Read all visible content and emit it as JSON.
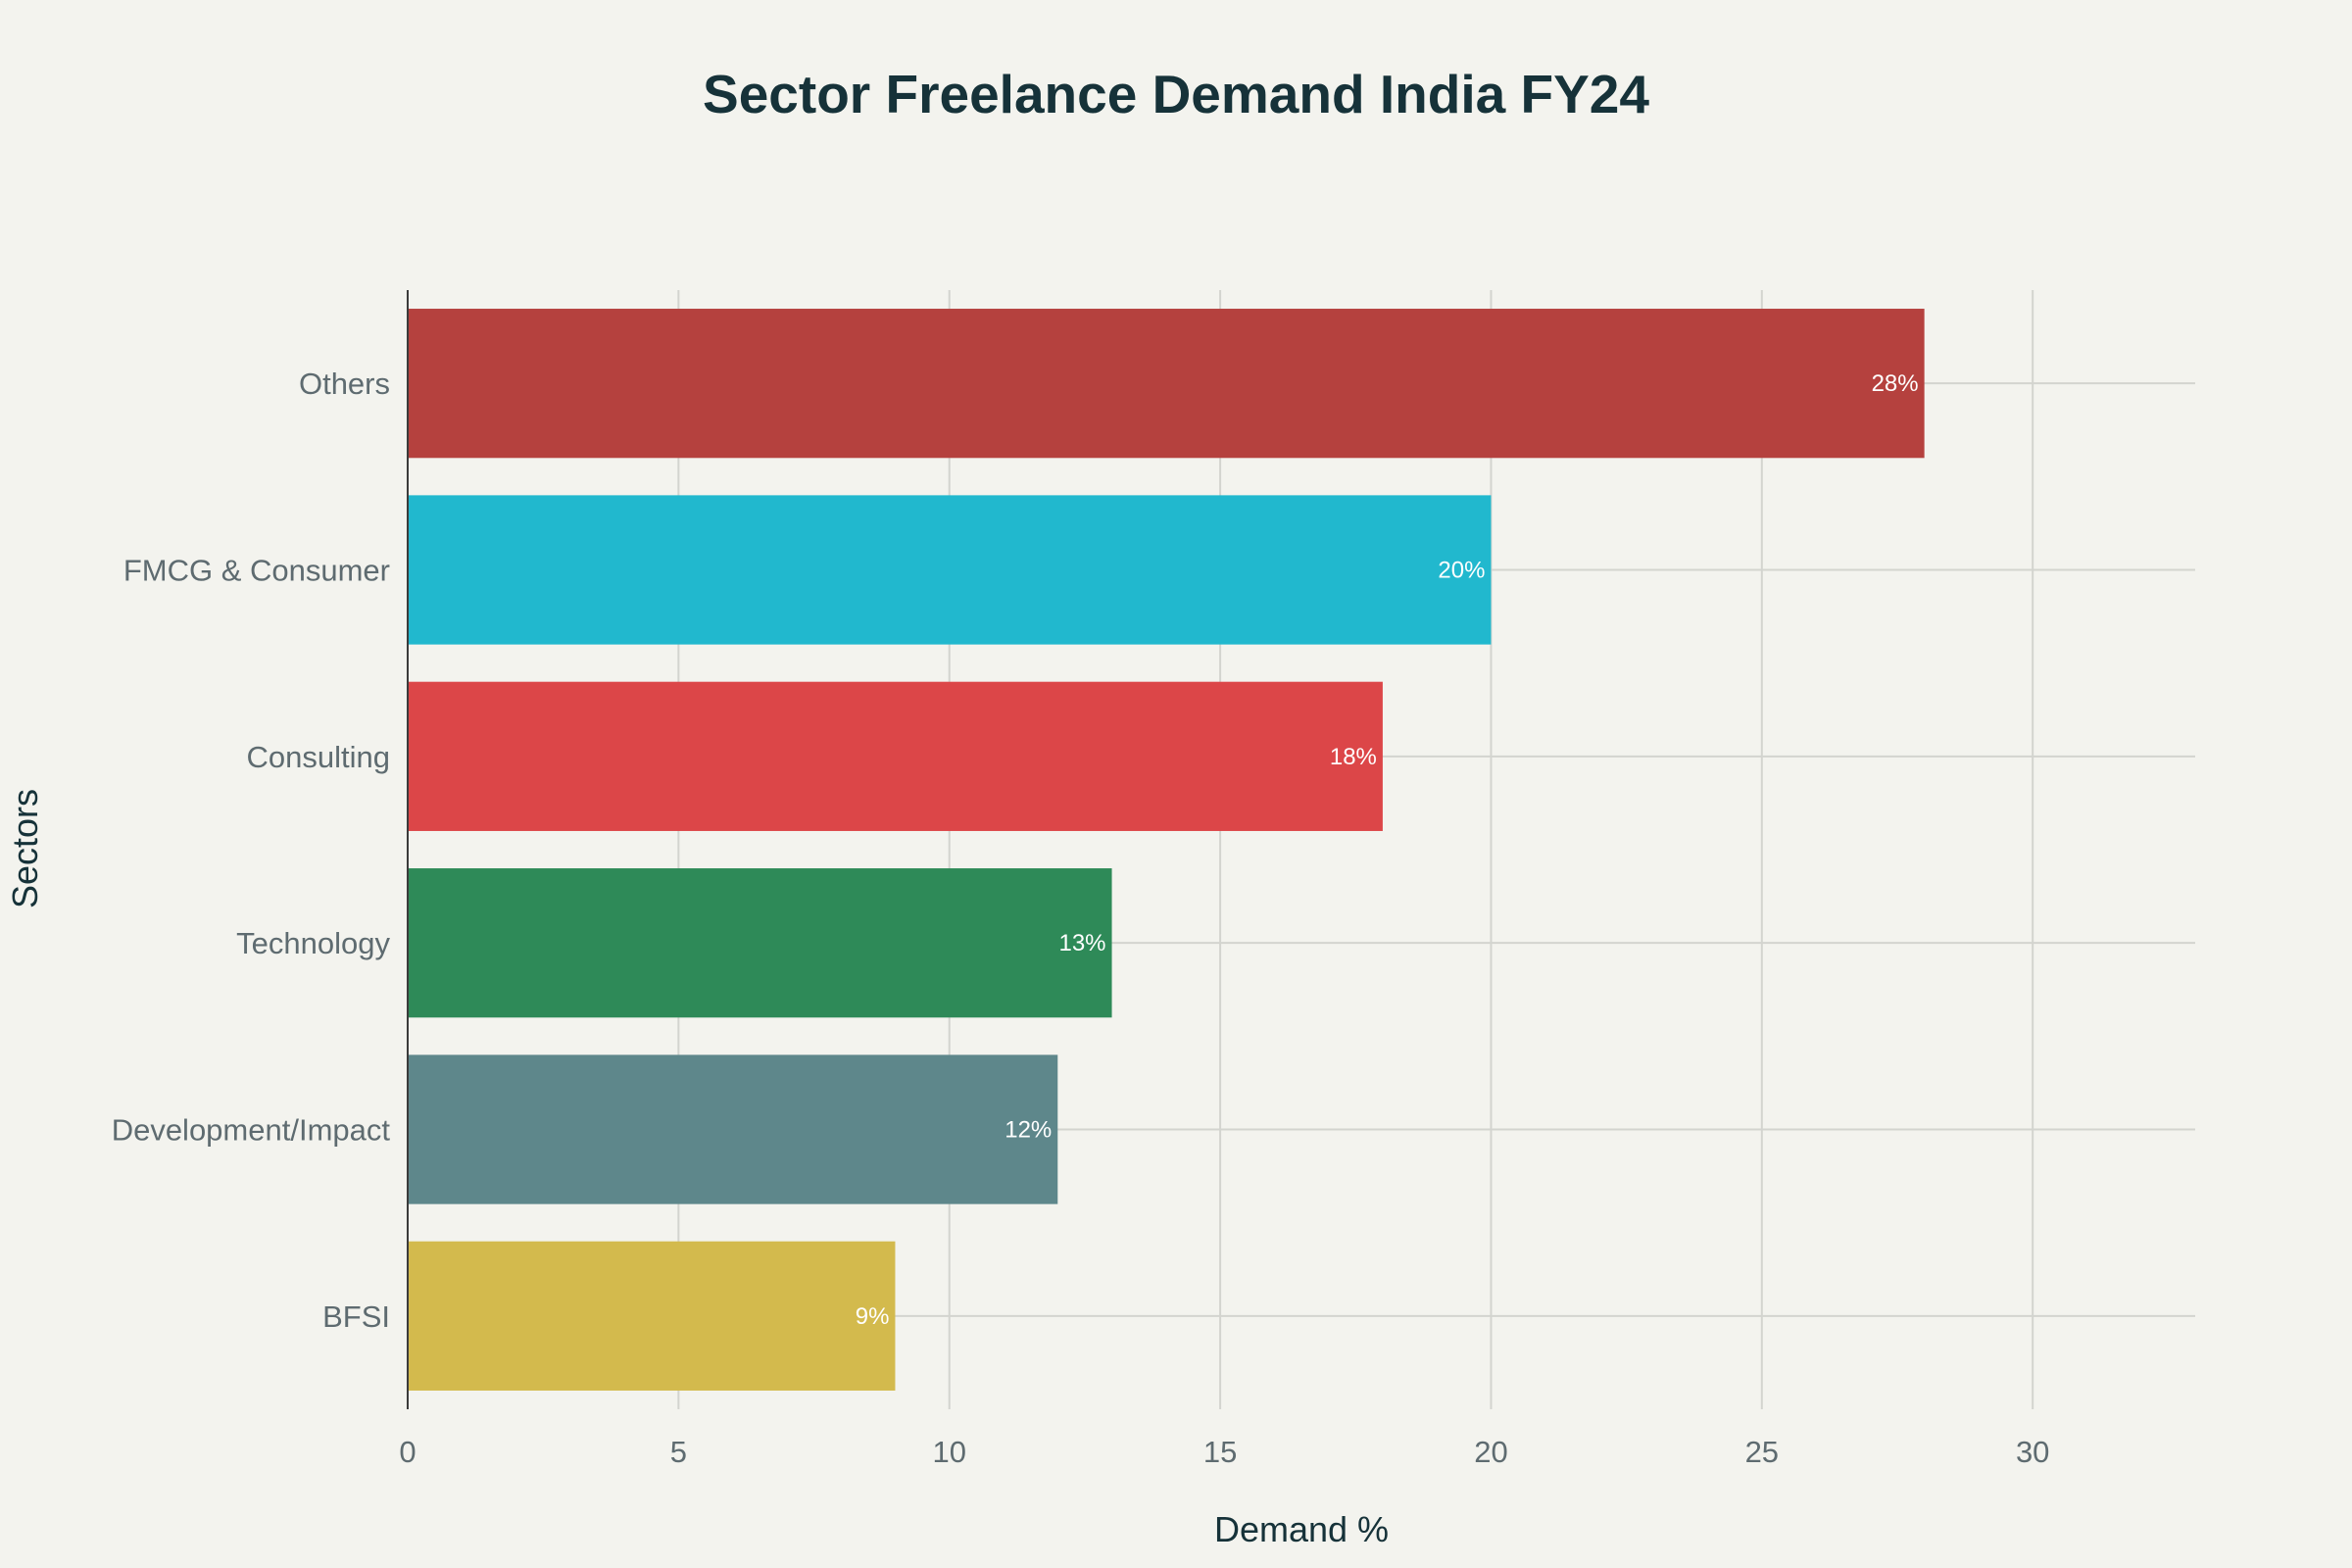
{
  "chart_data": {
    "type": "bar",
    "orientation": "horizontal",
    "title": "Sector Freelance Demand India FY24",
    "xlabel": "Demand %",
    "ylabel": "Sectors",
    "categories": [
      "BFSI",
      "Development/Impact",
      "Technology",
      "Consulting",
      "FMCG & Consumer",
      "Others"
    ],
    "values": [
      9,
      12,
      13,
      18,
      20,
      28
    ],
    "data_labels": [
      "9%",
      "12%",
      "13%",
      "18%",
      "20%",
      "28%"
    ],
    "colors": [
      "#d3ba4d",
      "#5e878b",
      "#2e8a58",
      "#dc4648",
      "#21b8ce",
      "#b5413e"
    ],
    "xlim": [
      0,
      33
    ],
    "x_ticks": [
      0,
      5,
      10,
      15,
      20,
      25,
      30
    ],
    "grid": true,
    "legend": "none"
  }
}
